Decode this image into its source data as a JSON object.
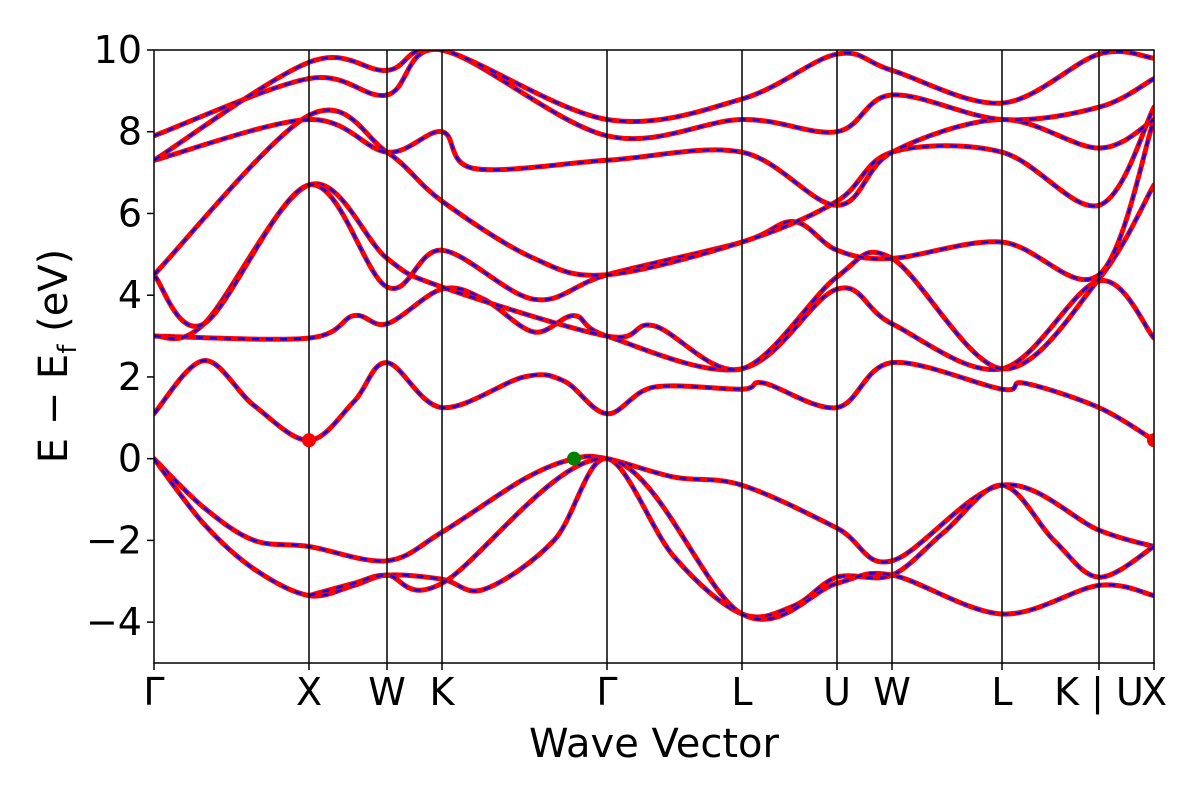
{
  "chart_data": {
    "type": "line",
    "xlabel": "Wave Vector",
    "ylabel": "E − E",
    "ylabel_sub": "f",
    "ylabel_unit": " (eV)",
    "ylim": [
      -5,
      10
    ],
    "yticks": [
      -4,
      -2,
      0,
      2,
      4,
      6,
      8,
      10
    ],
    "ytick_labels": [
      "−4",
      "−2",
      "0",
      "2",
      "4",
      "6",
      "8",
      "10"
    ],
    "xlim": [
      0,
      1
    ],
    "high_symmetry_points": [
      {
        "label": "Γ",
        "x": 0.0
      },
      {
        "label": "X",
        "x": 0.155
      },
      {
        "label": "W",
        "x": 0.233
      },
      {
        "label": "K",
        "x": 0.288
      },
      {
        "label": "Γ",
        "x": 0.453
      },
      {
        "label": "L",
        "x": 0.588
      },
      {
        "label": "U",
        "x": 0.683
      },
      {
        "label": "W",
        "x": 0.738
      },
      {
        "label": "L",
        "x": 0.848
      },
      {
        "label": "K | U",
        "x": 0.945
      },
      {
        "label": "X",
        "x": 1.0
      }
    ],
    "line_colors": {
      "solid": "#ff0000",
      "dashed": "#0000ff"
    },
    "bands": [
      {
        "points": [
          [
            0,
            0
          ],
          [
            0.05,
            -1.2
          ],
          [
            0.1,
            -2.0
          ],
          [
            0.155,
            -2.15
          ],
          [
            0.233,
            -2.5
          ],
          [
            0.288,
            -1.8
          ],
          [
            0.37,
            -0.5
          ],
          [
            0.42,
            0.0
          ],
          [
            0.453,
            0.0
          ],
          [
            0.52,
            -0.45
          ],
          [
            0.588,
            -0.65
          ],
          [
            0.683,
            -1.7
          ],
          [
            0.738,
            -2.5
          ],
          [
            0.848,
            -0.65
          ],
          [
            0.945,
            -1.75
          ],
          [
            1.0,
            -2.15
          ]
        ]
      },
      {
        "points": [
          [
            0,
            0
          ],
          [
            0.05,
            -1.6
          ],
          [
            0.1,
            -2.7
          ],
          [
            0.155,
            -3.35
          ],
          [
            0.2,
            -3.1
          ],
          [
            0.233,
            -2.85
          ],
          [
            0.288,
            -2.95
          ],
          [
            0.33,
            -3.2
          ],
          [
            0.4,
            -2.0
          ],
          [
            0.453,
            0.0
          ],
          [
            0.52,
            -2.4
          ],
          [
            0.588,
            -3.8
          ],
          [
            0.64,
            -3.6
          ],
          [
            0.683,
            -2.9
          ],
          [
            0.738,
            -2.85
          ],
          [
            0.79,
            -1.8
          ],
          [
            0.848,
            -0.65
          ],
          [
            0.9,
            -2.0
          ],
          [
            0.945,
            -2.9
          ],
          [
            1.0,
            -2.15
          ]
        ]
      },
      {
        "points": [
          [
            0.155,
            -3.35
          ],
          [
            0.2,
            -3.05
          ],
          [
            0.233,
            -2.85
          ],
          [
            0.288,
            -3.05
          ],
          [
            0.453,
            0.0
          ],
          [
            0.588,
            -3.8
          ],
          [
            0.683,
            -3.05
          ],
          [
            0.738,
            -2.85
          ],
          [
            0.848,
            -3.8
          ],
          [
            0.945,
            -3.1
          ],
          [
            1.0,
            -3.35
          ]
        ]
      },
      {
        "points": [
          [
            0,
            1.1
          ],
          [
            0.05,
            2.4
          ],
          [
            0.1,
            1.3
          ],
          [
            0.155,
            0.45
          ],
          [
            0.2,
            1.4
          ],
          [
            0.233,
            2.35
          ],
          [
            0.288,
            1.25
          ],
          [
            0.37,
            2.0
          ],
          [
            0.41,
            1.9
          ],
          [
            0.453,
            1.1
          ],
          [
            0.5,
            1.75
          ],
          [
            0.588,
            1.7
          ],
          [
            0.61,
            1.85
          ],
          [
            0.683,
            1.25
          ],
          [
            0.738,
            2.35
          ],
          [
            0.848,
            1.7
          ],
          [
            0.87,
            1.85
          ],
          [
            0.945,
            1.25
          ],
          [
            1.0,
            0.45
          ]
        ]
      },
      {
        "points": [
          [
            0,
            3.0
          ],
          [
            0.155,
            2.95
          ],
          [
            0.2,
            3.5
          ],
          [
            0.233,
            3.3
          ],
          [
            0.288,
            4.15
          ],
          [
            0.33,
            3.9
          ],
          [
            0.38,
            3.1
          ],
          [
            0.42,
            3.5
          ],
          [
            0.453,
            3.0
          ],
          [
            0.588,
            2.2
          ],
          [
            0.683,
            4.15
          ],
          [
            0.738,
            3.3
          ],
          [
            0.848,
            2.2
          ],
          [
            0.945,
            4.35
          ],
          [
            1.0,
            2.95
          ]
        ]
      },
      {
        "points": [
          [
            0,
            3.0
          ],
          [
            0.05,
            3.3
          ],
          [
            0.155,
            6.7
          ],
          [
            0.233,
            4.9
          ],
          [
            0.288,
            4.2
          ],
          [
            0.453,
            3.0
          ],
          [
            0.5,
            3.25
          ],
          [
            0.588,
            2.2
          ],
          [
            0.683,
            4.45
          ],
          [
            0.738,
            4.9
          ],
          [
            0.848,
            2.2
          ],
          [
            0.945,
            4.4
          ],
          [
            1.0,
            6.7
          ]
        ]
      },
      {
        "points": [
          [
            0,
            4.5
          ],
          [
            0.05,
            3.3
          ],
          [
            0.155,
            6.7
          ],
          [
            0.233,
            4.2
          ],
          [
            0.288,
            5.1
          ],
          [
            0.38,
            3.9
          ],
          [
            0.453,
            4.5
          ],
          [
            0.588,
            5.3
          ],
          [
            0.64,
            5.8
          ],
          [
            0.683,
            5.1
          ],
          [
            0.738,
            4.9
          ],
          [
            0.848,
            5.3
          ],
          [
            0.945,
            4.5
          ],
          [
            1.0,
            8.3
          ]
        ]
      },
      {
        "points": [
          [
            0,
            4.5
          ],
          [
            0.155,
            8.4
          ],
          [
            0.233,
            7.5
          ],
          [
            0.288,
            6.3
          ],
          [
            0.38,
            4.9
          ],
          [
            0.453,
            4.5
          ],
          [
            0.588,
            5.3
          ],
          [
            0.683,
            6.3
          ],
          [
            0.738,
            7.5
          ],
          [
            0.848,
            7.5
          ],
          [
            0.945,
            6.2
          ],
          [
            1.0,
            8.6
          ]
        ]
      },
      {
        "points": [
          [
            0,
            7.3
          ],
          [
            0.155,
            8.3
          ],
          [
            0.233,
            7.5
          ],
          [
            0.288,
            8.0
          ],
          [
            0.32,
            7.1
          ],
          [
            0.453,
            7.3
          ],
          [
            0.588,
            7.5
          ],
          [
            0.683,
            6.2
          ],
          [
            0.738,
            7.5
          ],
          [
            0.848,
            8.3
          ],
          [
            0.945,
            7.6
          ],
          [
            1.0,
            8.3
          ]
        ]
      },
      {
        "points": [
          [
            0,
            7.9
          ],
          [
            0.155,
            9.3
          ],
          [
            0.233,
            8.9
          ],
          [
            0.288,
            10.0
          ],
          [
            0.453,
            7.9
          ],
          [
            0.588,
            8.3
          ],
          [
            0.683,
            8.0
          ],
          [
            0.738,
            8.9
          ],
          [
            0.848,
            8.3
          ],
          [
            0.945,
            8.6
          ],
          [
            1.0,
            9.3
          ]
        ]
      },
      {
        "points": [
          [
            0,
            7.3
          ],
          [
            0.155,
            9.7
          ],
          [
            0.233,
            9.5
          ],
          [
            0.288,
            10.0
          ],
          [
            0.453,
            8.3
          ],
          [
            0.588,
            8.8
          ],
          [
            0.683,
            9.9
          ],
          [
            0.738,
            9.5
          ],
          [
            0.848,
            8.7
          ],
          [
            0.945,
            9.9
          ],
          [
            1.0,
            9.8
          ]
        ]
      }
    ],
    "markers": [
      {
        "name": "cbm-point-x",
        "x": 0.155,
        "y": 0.45,
        "color": "#ff0000"
      },
      {
        "name": "cbm-point-end",
        "x": 1.0,
        "y": 0.45,
        "color": "#ff0000"
      },
      {
        "name": "vbm-point",
        "x": 0.42,
        "y": 0.0,
        "color": "#008000"
      }
    ]
  }
}
